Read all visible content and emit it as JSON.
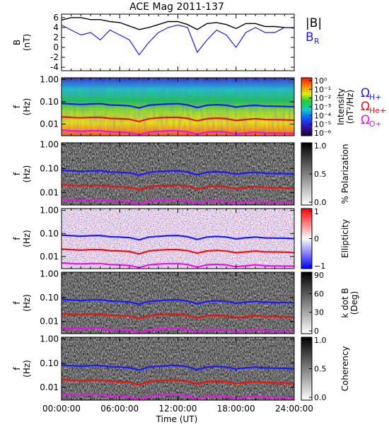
{
  "title": "ACE Mag 2011-137",
  "xlabel": "Time (UT)",
  "x_ticks": [
    "00:00:00",
    "06:00:00",
    "12:00:00",
    "18:00:00",
    "24:00:00"
  ],
  "colors": {
    "black": "#000000",
    "blue": "#1a1aff",
    "red": "#ee1111",
    "magenta": "#ee11ee"
  },
  "chart_data": [
    {
      "type": "line",
      "panel": "B",
      "ylabel_lines": [
        "B",
        "(nT)"
      ],
      "yticks": [
        "6",
        "4",
        "2",
        "0",
        "-2",
        "-4"
      ],
      "ylim": [
        -4.7,
        6.7
      ],
      "xlim_hours": [
        0,
        24
      ],
      "legend": [
        "|B|",
        "B"
      ],
      "legend_subscript": [
        "",
        "R"
      ],
      "series": [
        {
          "name": "|B|",
          "color": "black",
          "x": [
            0,
            1,
            2,
            3,
            4,
            5,
            6,
            7,
            8,
            9,
            10,
            11,
            12,
            13,
            14,
            15,
            16,
            17,
            18,
            19,
            20,
            21,
            22,
            23,
            24
          ],
          "y": [
            5.5,
            6.0,
            6.0,
            5.6,
            5.6,
            5.2,
            5.0,
            4.3,
            3.6,
            4.0,
            4.6,
            5.2,
            5.2,
            4.6,
            3.6,
            4.8,
            5.0,
            4.6,
            3.8,
            4.8,
            4.8,
            4.2,
            4.2,
            4.0,
            3.9
          ]
        },
        {
          "name": "B_R",
          "color": "blue",
          "x": [
            0,
            1,
            2,
            3,
            4,
            5,
            6,
            7,
            8,
            9,
            10,
            11,
            12,
            13,
            14,
            15,
            16,
            17,
            18,
            19,
            20,
            21,
            22,
            23,
            24
          ],
          "y": [
            4.5,
            3.5,
            2.5,
            3.0,
            1.5,
            3.5,
            2.5,
            1.5,
            -1.5,
            1.0,
            3.0,
            4.0,
            4.5,
            4.0,
            -1.0,
            1.5,
            3.5,
            2.5,
            0.0,
            3.0,
            4.0,
            3.0,
            3.0,
            4.0,
            3.9
          ]
        }
      ]
    },
    {
      "type": "heatmap",
      "panel": "Intensity",
      "ylabel_lines": [
        "f",
        "(Hz)"
      ],
      "yscale": "log",
      "ylim": [
        0.003,
        1.2
      ],
      "yticks": [
        "1.00",
        "0.10",
        "0.01"
      ],
      "colorbar": {
        "label": "Intensity",
        "unit": "(nT²/Hz)",
        "colormap": "rainbow",
        "ticks": [
          "10⁰",
          "10⁻¹",
          "10⁻²",
          "10⁻³",
          "10⁻⁴",
          "10⁻⁵",
          "10⁻⁶"
        ]
      },
      "legend": [
        "Ω",
        "Ω",
        "Ω"
      ],
      "legend_subscript": [
        "H+",
        "He+",
        "O+"
      ]
    },
    {
      "type": "heatmap",
      "panel": "% Polarization",
      "ylabel_lines": [
        "f",
        "(Hz)"
      ],
      "yscale": "log",
      "ylim": [
        0.003,
        1.2
      ],
      "yticks": [
        "1.00",
        "0.10",
        "0.01"
      ],
      "colorbar": {
        "label": "% Polarization",
        "colormap": "gray",
        "ticks": [
          "1.0",
          "0.5",
          "0.0"
        ]
      }
    },
    {
      "type": "heatmap",
      "panel": "Ellipticity",
      "ylabel_lines": [
        "f",
        "(Hz)"
      ],
      "yscale": "log",
      "ylim": [
        0.003,
        1.2
      ],
      "yticks": [
        "1.00",
        "0.10",
        "0.01"
      ],
      "colorbar": {
        "label": "Ellipticity",
        "colormap": "blue-white-red",
        "ticks": [
          "1",
          "0",
          "−1"
        ]
      }
    },
    {
      "type": "heatmap",
      "panel": "k dot B",
      "ylabel_lines": [
        "f",
        "(Hz)"
      ],
      "yscale": "log",
      "ylim": [
        0.003,
        1.2
      ],
      "yticks": [
        "1.00",
        "0.10",
        "0.01"
      ],
      "colorbar": {
        "label": "k dot B",
        "unit": "(Deg)",
        "colormap": "gray",
        "ticks": [
          "90",
          "60",
          "30",
          "0"
        ]
      }
    },
    {
      "type": "heatmap",
      "panel": "Coherency",
      "ylabel_lines": [
        "f",
        "(Hz)"
      ],
      "yscale": "log",
      "ylim": [
        0.003,
        1.2
      ],
      "yticks": [
        "1.00",
        "0.10",
        "0.01"
      ],
      "colorbar": {
        "label": "Coherency",
        "colormap": "gray",
        "ticks": [
          "1.0",
          "0.5",
          "0.0"
        ]
      }
    }
  ],
  "gyro_lines": {
    "x": [
      0,
      1,
      2,
      3,
      4,
      5,
      6,
      7,
      8,
      9,
      10,
      11,
      12,
      13,
      14,
      15,
      16,
      17,
      18,
      19,
      20,
      21,
      22,
      23,
      24
    ],
    "H": [
      0.085,
      0.08,
      0.076,
      0.08,
      0.082,
      0.072,
      0.07,
      0.066,
      0.053,
      0.07,
      0.075,
      0.08,
      0.082,
      0.072,
      0.055,
      0.07,
      0.074,
      0.07,
      0.058,
      0.065,
      0.07,
      0.064,
      0.063,
      0.062,
      0.06
    ],
    "He": [
      0.021,
      0.02,
      0.019,
      0.02,
      0.02,
      0.018,
      0.0175,
      0.0165,
      0.013,
      0.0175,
      0.019,
      0.02,
      0.02,
      0.018,
      0.014,
      0.0175,
      0.0185,
      0.0175,
      0.0145,
      0.016,
      0.0175,
      0.016,
      0.0158,
      0.0155,
      0.015
    ],
    "O": [
      0.0053,
      0.005,
      0.0048,
      0.005,
      0.005,
      0.0045,
      0.0044,
      0.0041,
      0.0033,
      0.0044,
      0.0047,
      0.005,
      0.005,
      0.0045,
      0.0035,
      0.0044,
      0.0046,
      0.0044,
      0.0036,
      0.004,
      0.0044,
      0.004,
      0.0039,
      0.0039,
      0.0038
    ]
  }
}
